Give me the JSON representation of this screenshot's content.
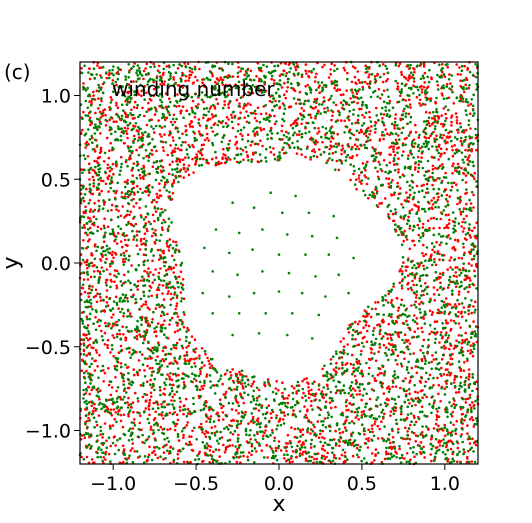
{
  "chart_data": {
    "type": "scatter",
    "panel_label": "(c)",
    "annotation": "winding number",
    "xlabel": "x",
    "ylabel": "y",
    "xlim": [
      -1.2,
      1.2
    ],
    "ylim": [
      -1.2,
      1.2
    ],
    "xticks": [
      -1.0,
      -0.5,
      0.0,
      0.5,
      1.0
    ],
    "yticks": [
      -1.0,
      -0.5,
      0.0,
      0.5,
      1.0
    ],
    "xtick_labels": [
      "−1.0",
      "−0.5",
      "0.0",
      "0.5",
      "1.0"
    ],
    "ytick_labels": [
      "−1.0",
      "−0.5",
      "0.0",
      "0.5",
      "1.0"
    ],
    "grid": false,
    "series": [
      {
        "color": "#ff0000",
        "description": "dense random points filling the square outside a central hole of radius about 0.7",
        "sample_count": 3500
      },
      {
        "color": "#008000",
        "description": "dense random points filling the square outside a central hole; plus a sparse triangular lattice inside the hole",
        "sample_count": 3000,
        "lattice_points": [
          [
            -0.05,
            0.42
          ],
          [
            0.1,
            0.4
          ],
          [
            -0.28,
            0.36
          ],
          [
            -0.15,
            0.33
          ],
          [
            0.02,
            0.3
          ],
          [
            0.18,
            0.3
          ],
          [
            0.33,
            0.28
          ],
          [
            -0.38,
            0.2
          ],
          [
            -0.24,
            0.18
          ],
          [
            -0.1,
            0.2
          ],
          [
            0.05,
            0.17
          ],
          [
            0.2,
            0.16
          ],
          [
            0.35,
            0.15
          ],
          [
            -0.45,
            0.09
          ],
          [
            -0.3,
            0.06
          ],
          [
            -0.16,
            0.08
          ],
          [
            0.0,
            0.05
          ],
          [
            0.16,
            0.05
          ],
          [
            0.3,
            0.05
          ],
          [
            0.45,
            0.03
          ],
          [
            -0.4,
            -0.05
          ],
          [
            -0.25,
            -0.07
          ],
          [
            -0.1,
            -0.05
          ],
          [
            0.06,
            -0.06
          ],
          [
            0.22,
            -0.08
          ],
          [
            0.36,
            -0.07
          ],
          [
            -0.46,
            -0.18
          ],
          [
            -0.3,
            -0.2
          ],
          [
            -0.15,
            -0.18
          ],
          [
            0.0,
            -0.17
          ],
          [
            0.14,
            -0.18
          ],
          [
            0.28,
            -0.2
          ],
          [
            0.42,
            -0.18
          ],
          [
            -0.4,
            -0.3
          ],
          [
            -0.24,
            -0.3
          ],
          [
            -0.08,
            -0.3
          ],
          [
            0.08,
            -0.3
          ],
          [
            0.24,
            -0.31
          ],
          [
            -0.28,
            -0.43
          ],
          [
            -0.12,
            -0.42
          ],
          [
            0.05,
            -0.43
          ],
          [
            0.2,
            -0.45
          ]
        ]
      }
    ]
  }
}
